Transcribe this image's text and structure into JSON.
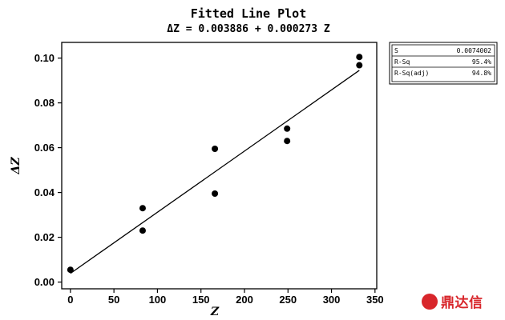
{
  "chart_data": {
    "type": "scatter",
    "title": "Fitted Line Plot",
    "subtitle": "ΔZ =  0.003886 + 0.000273 Z",
    "xlabel": "Z",
    "ylabel": "ΔZ",
    "xlim": [
      -10,
      352
    ],
    "ylim": [
      -0.003,
      0.107
    ],
    "xticks": [
      0,
      50,
      100,
      150,
      200,
      250,
      300,
      350
    ],
    "xtick_labels": [
      "0",
      "50",
      "100",
      "150",
      "200",
      "250",
      "300",
      "350"
    ],
    "yticks": [
      0.0,
      0.02,
      0.04,
      0.06,
      0.08,
      0.1
    ],
    "ytick_labels": [
      "0.00",
      "0.02",
      "0.04",
      "0.06",
      "0.08",
      "0.10"
    ],
    "grid": false,
    "legend": "none",
    "points": [
      {
        "x": 0,
        "y": 0.0055
      },
      {
        "x": 83,
        "y": 0.033
      },
      {
        "x": 83,
        "y": 0.023
      },
      {
        "x": 166,
        "y": 0.0595
      },
      {
        "x": 166,
        "y": 0.0395
      },
      {
        "x": 249,
        "y": 0.0685
      },
      {
        "x": 249,
        "y": 0.063
      },
      {
        "x": 332,
        "y": 0.1005
      },
      {
        "x": 332,
        "y": 0.0968
      }
    ],
    "fit_line": {
      "intercept": 0.003886,
      "slope": 0.000273,
      "x_range": [
        0,
        332
      ]
    },
    "stats": [
      {
        "label": "S",
        "value": "0.0074002"
      },
      {
        "label": "R-Sq",
        "value": "95.4%"
      },
      {
        "label": "R-Sq(adj)",
        "value": "94.8%"
      }
    ],
    "stats_position": "right"
  },
  "watermark": {
    "logo_text": "鼎",
    "text": "鼎达信"
  }
}
